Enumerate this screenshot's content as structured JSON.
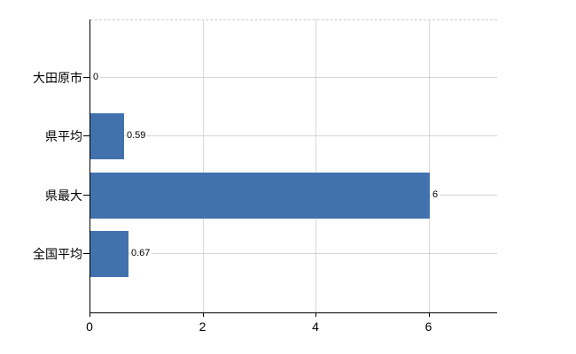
{
  "chart_data": {
    "type": "bar",
    "orientation": "horizontal",
    "title": "",
    "xlabel": "",
    "ylabel": "",
    "categories": [
      "大田原市",
      "県平均",
      "県最大",
      "全国平均"
    ],
    "values": [
      0,
      0.59,
      6,
      0.67
    ],
    "value_labels": [
      "0",
      "0.59",
      "6",
      "0.67"
    ],
    "x_ticks": [
      0,
      2,
      4,
      6
    ],
    "x_tick_labels": [
      "0",
      "2",
      "4",
      "6"
    ],
    "xlim": [
      0,
      7.2
    ],
    "grid": "on",
    "legend": "none",
    "colors": {
      "bar": "#4272ad",
      "axis": "#000000",
      "vgrid": "#d9d9d9",
      "hgrid": "#d3d6d3",
      "top_border": "#cccccc",
      "background": "#ffffff",
      "text": "#000000"
    }
  }
}
